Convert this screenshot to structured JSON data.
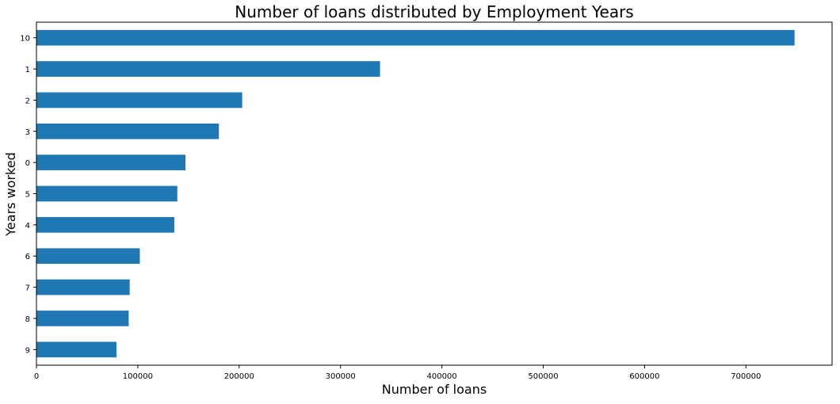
{
  "chart_data": {
    "type": "bar",
    "orientation": "horizontal",
    "title": "Number of loans distributed by Employment Years",
    "xlabel": "Number of loans",
    "ylabel": "Years worked",
    "categories": [
      "10",
      "1",
      "2",
      "3",
      "0",
      "5",
      "4",
      "6",
      "7",
      "8",
      "9"
    ],
    "values": [
      748000,
      339000,
      203000,
      180000,
      147000,
      139000,
      136000,
      102000,
      92000,
      91000,
      79000
    ],
    "xlim": [
      0,
      785000
    ],
    "xticks": [
      0,
      100000,
      200000,
      300000,
      400000,
      500000,
      600000,
      700000
    ],
    "grid": false,
    "legend": "none",
    "bar_color": "#1f77b4"
  }
}
